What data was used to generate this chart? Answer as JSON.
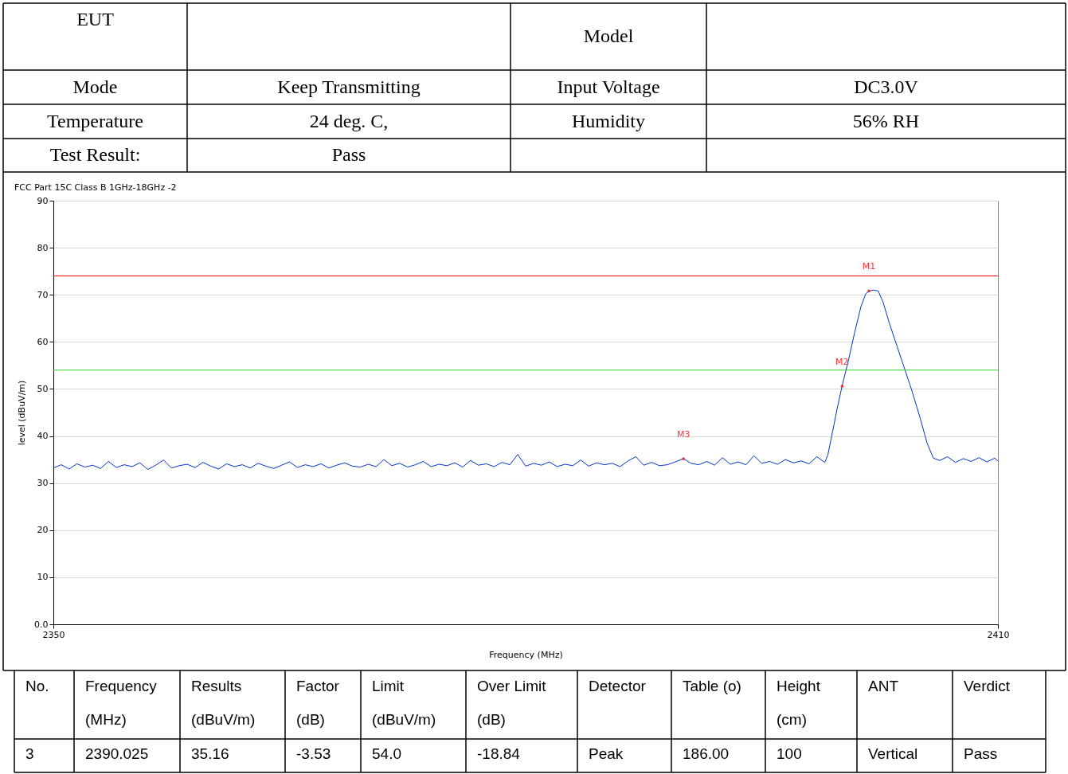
{
  "chart_data": {
    "type": "line",
    "title": "FCC Part 15C  Class B 1GHz-18GHz -2",
    "xlabel": "Frequency (MHz)",
    "ylabel": "level (dBuV/m)",
    "xlim": [
      2350,
      2410
    ],
    "xticks": [
      2350,
      2410
    ],
    "ylim": [
      0,
      90
    ],
    "yticks": [
      {
        "value": 0,
        "label": "0.0"
      },
      10,
      20,
      30,
      40,
      50,
      60,
      70,
      80,
      90
    ],
    "grid": "y",
    "marker": "none",
    "line_style": "solid",
    "series": [
      {
        "color": "#0033cc",
        "x": [
          2350,
          2350.5,
          2351,
          2351.5,
          2352,
          2352.5,
          2353,
          2353.5,
          2354,
          2354.5,
          2355,
          2355.5,
          2356,
          2356.5,
          2357,
          2357.5,
          2358,
          2358.5,
          2359,
          2359.5,
          2360,
          2360.5,
          2361,
          2361.5,
          2362,
          2362.5,
          2363,
          2363.5,
          2364,
          2364.5,
          2365,
          2365.5,
          2366,
          2366.5,
          2367,
          2367.5,
          2368,
          2368.5,
          2369,
          2369.5,
          2370,
          2370.5,
          2371,
          2371.5,
          2372,
          2372.5,
          2373,
          2373.5,
          2374,
          2374.5,
          2375,
          2375.5,
          2376,
          2376.5,
          2377,
          2377.5,
          2378,
          2378.5,
          2379,
          2379.5,
          2380,
          2380.5,
          2381,
          2381.5,
          2382,
          2382.5,
          2383,
          2383.5,
          2384,
          2384.5,
          2385,
          2385.5,
          2386,
          2386.5,
          2387,
          2387.5,
          2388,
          2388.5,
          2389,
          2389.5,
          2390.025,
          2390.5,
          2391,
          2391.5,
          2392,
          2392.5,
          2393,
          2393.5,
          2394,
          2394.5,
          2395,
          2395.5,
          2396,
          2396.5,
          2397,
          2397.5,
          2398,
          2398.5,
          2399,
          2399.2,
          2399.5,
          2399.8,
          2400.1,
          2400.5,
          2400.9,
          2401.3,
          2401.6,
          2401.8,
          2402.1,
          2402.4,
          2402.7,
          2403.1,
          2403.5,
          2404,
          2404.5,
          2405,
          2405.5,
          2405.9,
          2406.3,
          2406.8,
          2407.3,
          2407.8,
          2408.3,
          2408.8,
          2409.3,
          2409.8,
          2410
        ],
        "values": [
          33.2,
          33.9,
          33.0,
          34.1,
          33.4,
          33.8,
          33.1,
          34.6,
          33.3,
          33.9,
          33.5,
          34.3,
          32.9,
          33.8,
          34.9,
          33.2,
          33.7,
          34.0,
          33.3,
          34.4,
          33.6,
          33.0,
          34.1,
          33.5,
          33.9,
          33.2,
          34.2,
          33.6,
          33.1,
          33.8,
          34.5,
          33.3,
          33.9,
          33.5,
          34.1,
          33.2,
          33.8,
          34.3,
          33.6,
          33.4,
          34.0,
          33.5,
          35.0,
          33.7,
          34.2,
          33.4,
          33.9,
          34.6,
          33.5,
          34.0,
          33.7,
          34.3,
          33.4,
          34.8,
          33.8,
          34.1,
          33.5,
          34.4,
          33.9,
          36.1,
          33.6,
          34.2,
          33.8,
          34.5,
          33.5,
          34.0,
          33.7,
          34.9,
          33.6,
          34.3,
          33.9,
          34.2,
          33.5,
          34.7,
          35.6,
          33.8,
          34.4,
          33.7,
          33.9,
          34.5,
          35.2,
          34.2,
          33.9,
          34.6,
          33.8,
          35.4,
          34.0,
          34.5,
          33.9,
          35.8,
          34.2,
          34.6,
          34.0,
          35.0,
          34.3,
          34.7,
          34.1,
          35.6,
          34.4,
          36,
          41,
          46,
          50.6,
          56,
          62,
          67.5,
          70.2,
          70.8,
          71,
          70.8,
          68.5,
          64,
          60,
          55,
          50,
          44.5,
          38.5,
          35.3,
          34.8,
          35.6,
          34.4,
          35.2,
          34.6,
          35.4,
          34.5,
          35.3,
          34.7
        ]
      }
    ],
    "ref_lines": [
      {
        "axis": "y",
        "value": 74,
        "color": "#ff0000"
      },
      {
        "axis": "y",
        "value": 54,
        "color": "#33cc33"
      }
    ],
    "annotations": [
      {
        "text": "M1",
        "x": 2401.8,
        "y": 70.8
      },
      {
        "text": "M2",
        "x": 2400.1,
        "y": 50.6
      },
      {
        "text": "M3",
        "x": 2390.025,
        "y": 35.16
      },
      "EUT",
      "Model",
      "Mode",
      "Keep Transmitting",
      "Input Voltage",
      "DC3.0V",
      "Temperature",
      "24 deg. C,",
      "Humidity",
      "56% RH",
      "Test Result:",
      "Pass",
      "No.",
      "Frequency\n(MHz)",
      "Results\n(dBuV/m)",
      "Factor\n(dB)",
      "Limit\n(dBuV/m)",
      "Over Limit\n(dB)",
      "Detector",
      "Table (o)",
      "Height\n(cm)",
      "ANT",
      "Verdict",
      "3",
      "2390.025",
      "35.16",
      "-3.53",
      "54.0",
      "-18.84",
      "Peak",
      "186.00",
      "100",
      "Vertical",
      "Pass"
    ]
  }
}
